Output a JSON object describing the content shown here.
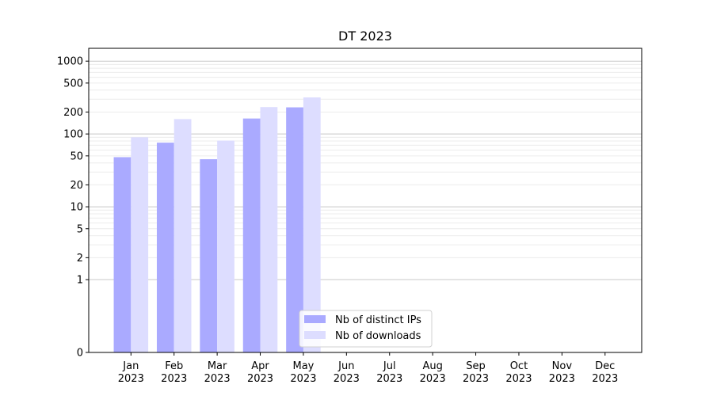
{
  "chart_data": {
    "type": "bar",
    "title": "DT 2023",
    "categories": [
      "Jan",
      "Feb",
      "Mar",
      "Apr",
      "May",
      "Jun",
      "Jul",
      "Aug",
      "Sep",
      "Oct",
      "Nov",
      "Dec"
    ],
    "category_years": [
      "2023",
      "2023",
      "2023",
      "2023",
      "2023",
      "2023",
      "2023",
      "2023",
      "2023",
      "2023",
      "2023",
      "2023"
    ],
    "series": [
      {
        "name": "Nb of distinct IPs",
        "color": "#aaaaff",
        "values": [
          48,
          76,
          45,
          163,
          232,
          null,
          null,
          null,
          null,
          null,
          null,
          null
        ]
      },
      {
        "name": "Nb of downloads",
        "color": "#ddddff",
        "values": [
          90,
          160,
          81,
          234,
          318,
          null,
          null,
          null,
          null,
          null,
          null,
          null
        ]
      }
    ],
    "y_scale": "symlog",
    "ylim": [
      0,
      1500
    ],
    "y_ticks": [
      0,
      1,
      2,
      5,
      10,
      20,
      50,
      100,
      200,
      500,
      1000
    ],
    "y_tick_labels": [
      "0",
      "1",
      "2",
      "5",
      "10",
      "20",
      "50",
      "100",
      "200",
      "500",
      "1000"
    ],
    "grid": "y-major-and-minor",
    "legend_position": "lower-center"
  }
}
